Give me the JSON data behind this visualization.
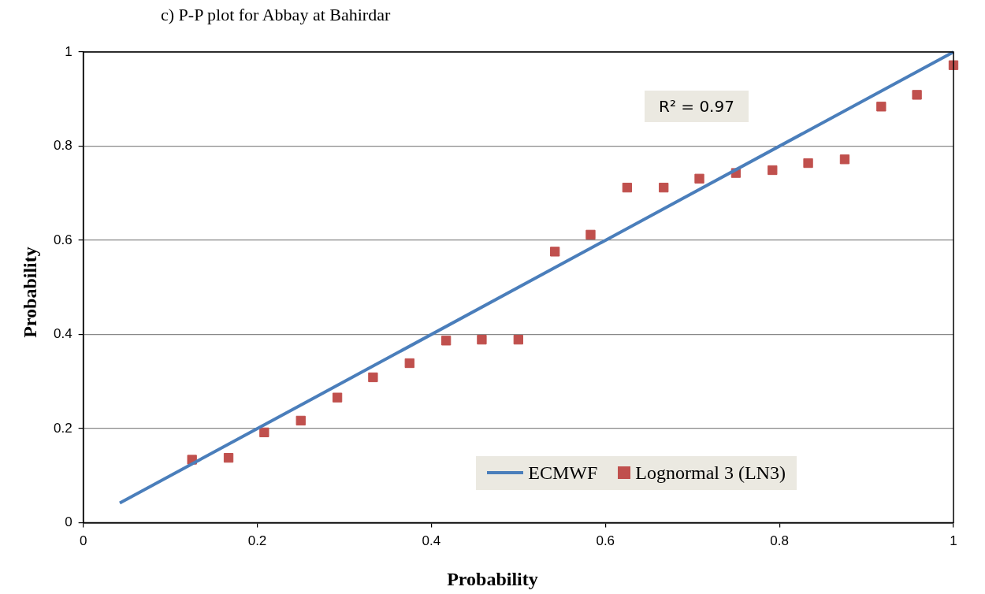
{
  "chart_data": {
    "type": "scatter",
    "title": "c) P-P plot for Abbay at Bahirdar",
    "xlabel": "Probability",
    "ylabel": "Probability",
    "annotations": [
      "R² = 0.97"
    ],
    "xlim": [
      0,
      1
    ],
    "ylim": [
      0,
      1
    ],
    "xticks": [
      0,
      0.2,
      0.4,
      0.6,
      0.8,
      1
    ],
    "yticks": [
      0,
      0.2,
      0.4,
      0.6,
      0.8,
      1
    ],
    "grid": "y",
    "legend": "bottom",
    "series": [
      {
        "name": "ECMWF",
        "type": "line",
        "color": "#4a7ebb",
        "marker": "none",
        "x": [
          0.042,
          1
        ],
        "values": [
          0.042,
          1
        ]
      },
      {
        "name": "Lognormal 3 (LN3)",
        "type": "scatter",
        "color": "#c0504d",
        "marker": "square",
        "x": [
          0.125,
          0.167,
          0.208,
          0.25,
          0.292,
          0.333,
          0.375,
          0.417,
          0.458,
          0.5,
          0.542,
          0.583,
          0.625,
          0.667,
          0.708,
          0.75,
          0.792,
          0.833,
          0.875,
          0.917,
          0.958,
          1
        ],
        "values": [
          0.134,
          0.138,
          0.192,
          0.217,
          0.266,
          0.309,
          0.339,
          0.387,
          0.389,
          0.389,
          0.576,
          0.612,
          0.712,
          0.712,
          0.731,
          0.743,
          0.749,
          0.764,
          0.772,
          0.884,
          0.909,
          0.972
        ]
      }
    ]
  }
}
